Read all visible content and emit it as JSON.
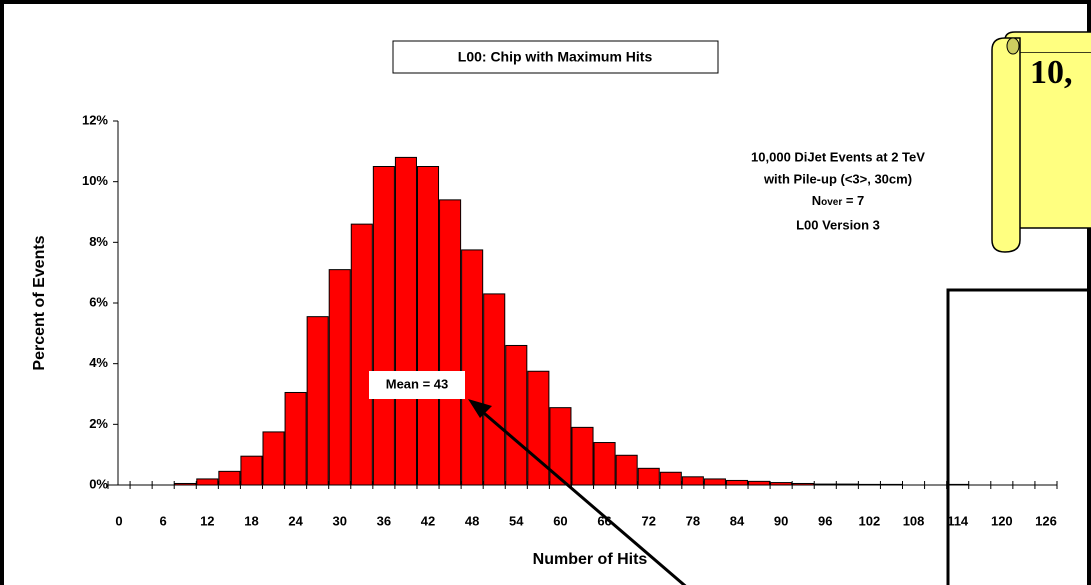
{
  "chart_data": {
    "type": "bar",
    "title": "L00: Chip with Maximum Hits",
    "x_label": "Number of Hits",
    "y_label": "Percent of Events",
    "categories": [
      "0",
      null,
      "6",
      null,
      "12",
      null,
      "18",
      null,
      "24",
      null,
      "30",
      null,
      "36",
      null,
      "42",
      null,
      "48",
      null,
      "54",
      null,
      "60",
      null,
      "66",
      null,
      "72",
      null,
      "78",
      null,
      "84",
      null,
      "90",
      null,
      "96",
      null,
      "102",
      null,
      "108",
      null,
      "114",
      null,
      "120",
      null,
      "126"
    ],
    "values": [
      0,
      0,
      0,
      0.05,
      0.2,
      0.45,
      0.95,
      1.75,
      3.05,
      5.55,
      7.1,
      8.6,
      10.5,
      10.8,
      10.5,
      9.4,
      7.75,
      6.3,
      4.6,
      3.75,
      2.55,
      1.9,
      1.4,
      0.98,
      0.55,
      0.42,
      0.27,
      0.2,
      0.15,
      0.12,
      0.08,
      0.05,
      0.03,
      0.03,
      0.02,
      0.02,
      0,
      0,
      0.02,
      0,
      0,
      0,
      0
    ],
    "color": "#ff0000",
    "ylim": [
      0,
      12
    ],
    "yticks": [
      {
        "value": 0,
        "label": "0%"
      },
      {
        "value": 2,
        "label": "2%"
      },
      {
        "value": 4,
        "label": "4%"
      },
      {
        "value": 6,
        "label": "6%"
      },
      {
        "value": 8,
        "label": "8%"
      },
      {
        "value": 10,
        "label": "10%"
      },
      {
        "value": 12,
        "label": "12%"
      }
    ],
    "annotation_lines": [
      "10,000 DiJet Events at 2 TeV",
      "with Pile-up (<3>, 30cm)"
    ],
    "n_over": {
      "main": "N",
      "sub": "over",
      "rest": " = 7"
    },
    "version": "L00 Version 3",
    "mean_label": "Mean = 43",
    "scroll_text": "10,"
  }
}
